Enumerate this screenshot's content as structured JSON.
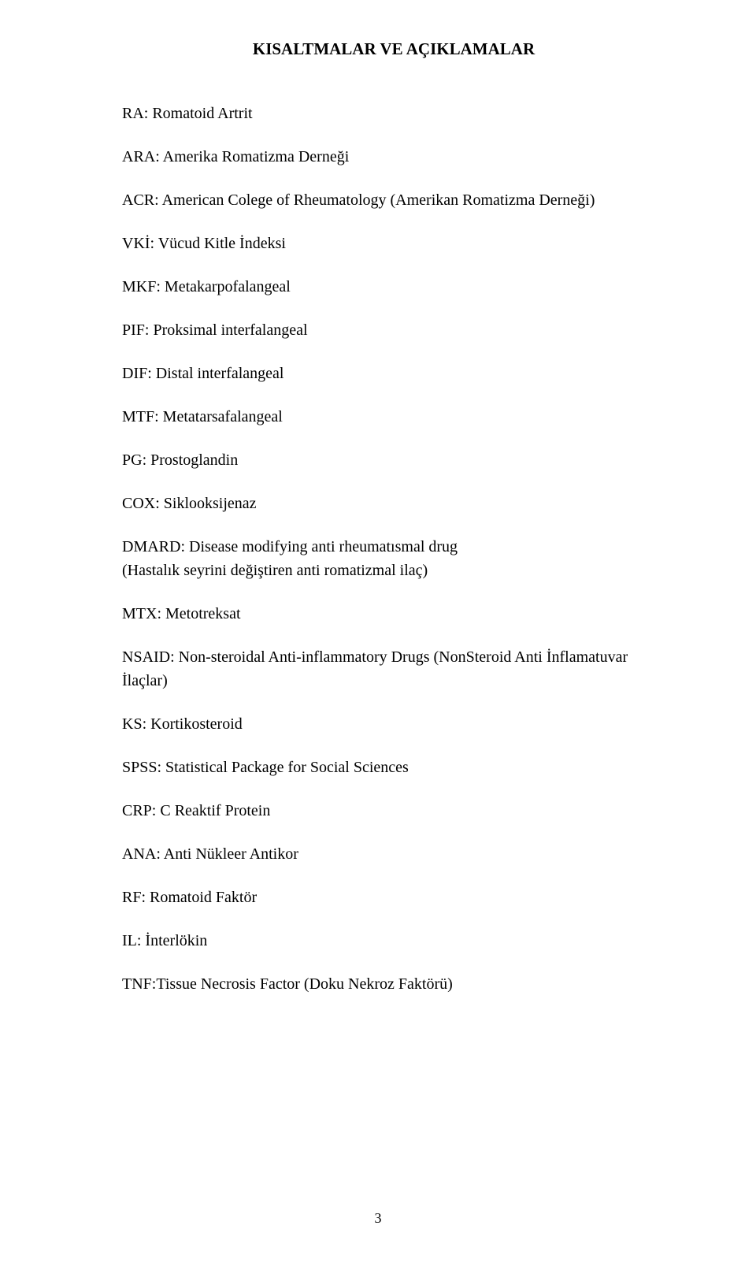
{
  "title": "KISALTMALAR VE AÇIKLAMALAR",
  "abbreviations": [
    "RA: Romatoid Artrit",
    "ARA: Amerika Romatizma Derneği",
    "ACR: American Colege of Rheumatology (Amerikan Romatizma Derneği)",
    "VKİ: Vücud Kitle İndeksi",
    "MKF: Metakarpofalangeal",
    "PIF: Proksimal interfalangeal",
    "DIF: Distal interfalangeal",
    "MTF: Metatarsafalangeal",
    "PG: Prostoglandin",
    "COX: Siklooksijenaz",
    "DMARD: Disease modifying anti rheumatısmal drug\n(Hastalık seyrini değiştiren anti romatizmal ilaç)",
    "MTX: Metotreksat",
    "NSAID: Non-steroidal Anti-inflammatory Drugs (NonSteroid Anti İnflamatuvar İlaçlar)",
    "KS: Kortikosteroid",
    "SPSS: Statistical Package for Social Sciences",
    "CRP: C Reaktif Protein",
    "ANA: Anti Nükleer Antikor",
    "RF: Romatoid Faktör",
    "IL: İnterlökin",
    "TNF:Tissue Necrosis Factor (Doku Nekroz Faktörü)"
  ],
  "pageNumber": "3"
}
